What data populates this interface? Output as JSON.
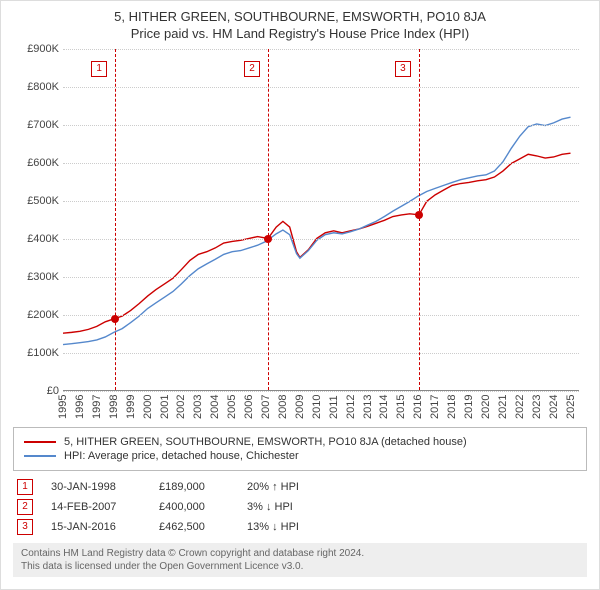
{
  "title": "5, HITHER GREEN, SOUTHBOURNE, EMSWORTH, PO10 8JA",
  "subtitle": "Price paid vs. HM Land Registry's House Price Index (HPI)",
  "chart": {
    "type": "line",
    "background_color": "#ffffff",
    "grid_color": "#cccccc",
    "x_min": 1995,
    "x_max": 2025.5,
    "y_min": 0,
    "y_max": 900000,
    "y_ticks": [
      0,
      100000,
      200000,
      300000,
      400000,
      500000,
      600000,
      700000,
      800000,
      900000
    ],
    "y_tick_labels": [
      "£0",
      "£100K",
      "£200K",
      "£300K",
      "£400K",
      "£500K",
      "£600K",
      "£700K",
      "£800K",
      "£900K"
    ],
    "x_ticks": [
      1995,
      1996,
      1997,
      1998,
      1999,
      2000,
      2001,
      2002,
      2003,
      2004,
      2005,
      2006,
      2007,
      2008,
      2009,
      2010,
      2011,
      2012,
      2013,
      2014,
      2015,
      2016,
      2017,
      2018,
      2019,
      2020,
      2021,
      2022,
      2023,
      2024,
      2025
    ],
    "label_fontsize": 11,
    "line_width": 1.4,
    "series": [
      {
        "name": "5, HITHER GREEN, SOUTHBOURNE, EMSWORTH, PO10 8JA (detached house)",
        "color": "#cc0000",
        "points": [
          [
            1995,
            150000
          ],
          [
            1995.5,
            152000
          ],
          [
            1996,
            155000
          ],
          [
            1996.5,
            160000
          ],
          [
            1997,
            168000
          ],
          [
            1997.5,
            180000
          ],
          [
            1998.08,
            189000
          ],
          [
            1998.5,
            195000
          ],
          [
            1999,
            210000
          ],
          [
            1999.5,
            228000
          ],
          [
            2000,
            248000
          ],
          [
            2000.5,
            265000
          ],
          [
            2001,
            280000
          ],
          [
            2001.5,
            295000
          ],
          [
            2002,
            318000
          ],
          [
            2002.5,
            342000
          ],
          [
            2003,
            358000
          ],
          [
            2003.5,
            365000
          ],
          [
            2004,
            375000
          ],
          [
            2004.5,
            388000
          ],
          [
            2005,
            392000
          ],
          [
            2005.5,
            395000
          ],
          [
            2006,
            400000
          ],
          [
            2006.5,
            405000
          ],
          [
            2007.12,
            400000
          ],
          [
            2007.6,
            430000
          ],
          [
            2008,
            445000
          ],
          [
            2008.4,
            430000
          ],
          [
            2008.8,
            365000
          ],
          [
            2009,
            350000
          ],
          [
            2009.5,
            370000
          ],
          [
            2010,
            400000
          ],
          [
            2010.5,
            415000
          ],
          [
            2011,
            420000
          ],
          [
            2011.5,
            415000
          ],
          [
            2012,
            420000
          ],
          [
            2012.5,
            425000
          ],
          [
            2013,
            432000
          ],
          [
            2013.5,
            440000
          ],
          [
            2014,
            448000
          ],
          [
            2014.5,
            458000
          ],
          [
            2015,
            462000
          ],
          [
            2015.5,
            465000
          ],
          [
            2016.04,
            462500
          ],
          [
            2016.5,
            498000
          ],
          [
            2017,
            515000
          ],
          [
            2017.5,
            528000
          ],
          [
            2018,
            540000
          ],
          [
            2018.5,
            545000
          ],
          [
            2019,
            548000
          ],
          [
            2019.5,
            552000
          ],
          [
            2020,
            555000
          ],
          [
            2020.5,
            562000
          ],
          [
            2021,
            578000
          ],
          [
            2021.5,
            598000
          ],
          [
            2022,
            610000
          ],
          [
            2022.5,
            622000
          ],
          [
            2023,
            618000
          ],
          [
            2023.5,
            612000
          ],
          [
            2024,
            615000
          ],
          [
            2024.5,
            622000
          ],
          [
            2025,
            625000
          ]
        ]
      },
      {
        "name": "HPI: Average price, detached house, Chichester",
        "color": "#5588cc",
        "points": [
          [
            1995,
            120000
          ],
          [
            1995.5,
            122000
          ],
          [
            1996,
            125000
          ],
          [
            1996.5,
            128000
          ],
          [
            1997,
            132000
          ],
          [
            1997.5,
            140000
          ],
          [
            1998,
            152000
          ],
          [
            1998.5,
            162000
          ],
          [
            1999,
            178000
          ],
          [
            1999.5,
            195000
          ],
          [
            2000,
            215000
          ],
          [
            2000.5,
            230000
          ],
          [
            2001,
            245000
          ],
          [
            2001.5,
            260000
          ],
          [
            2002,
            280000
          ],
          [
            2002.5,
            302000
          ],
          [
            2003,
            320000
          ],
          [
            2003.5,
            333000
          ],
          [
            2004,
            345000
          ],
          [
            2004.5,
            358000
          ],
          [
            2005,
            365000
          ],
          [
            2005.5,
            368000
          ],
          [
            2006,
            375000
          ],
          [
            2006.5,
            382000
          ],
          [
            2007,
            392000
          ],
          [
            2007.6,
            412000
          ],
          [
            2008,
            422000
          ],
          [
            2008.4,
            410000
          ],
          [
            2008.8,
            360000
          ],
          [
            2009,
            348000
          ],
          [
            2009.5,
            368000
          ],
          [
            2010,
            395000
          ],
          [
            2010.5,
            410000
          ],
          [
            2011,
            415000
          ],
          [
            2011.5,
            412000
          ],
          [
            2012,
            418000
          ],
          [
            2012.5,
            425000
          ],
          [
            2013,
            435000
          ],
          [
            2013.5,
            445000
          ],
          [
            2014,
            458000
          ],
          [
            2014.5,
            472000
          ],
          [
            2015,
            485000
          ],
          [
            2015.5,
            498000
          ],
          [
            2016,
            512000
          ],
          [
            2016.5,
            524000
          ],
          [
            2017,
            532000
          ],
          [
            2017.5,
            540000
          ],
          [
            2018,
            548000
          ],
          [
            2018.5,
            555000
          ],
          [
            2019,
            560000
          ],
          [
            2019.5,
            565000
          ],
          [
            2020,
            568000
          ],
          [
            2020.5,
            578000
          ],
          [
            2021,
            602000
          ],
          [
            2021.5,
            638000
          ],
          [
            2022,
            670000
          ],
          [
            2022.5,
            695000
          ],
          [
            2023,
            702000
          ],
          [
            2023.5,
            698000
          ],
          [
            2024,
            705000
          ],
          [
            2024.5,
            715000
          ],
          [
            2025,
            720000
          ]
        ]
      }
    ],
    "markers": [
      {
        "n": "1",
        "x": 1998.08,
        "y": 189000,
        "marker_color": "#cc0000"
      },
      {
        "n": "2",
        "x": 2007.12,
        "y": 400000,
        "marker_color": "#cc0000"
      },
      {
        "n": "3",
        "x": 2016.04,
        "y": 462500,
        "marker_color": "#cc0000"
      }
    ]
  },
  "legend": {
    "items": [
      {
        "color": "#cc0000",
        "label": "5, HITHER GREEN, SOUTHBOURNE, EMSWORTH, PO10 8JA (detached house)"
      },
      {
        "color": "#5588cc",
        "label": "HPI: Average price, detached house, Chichester"
      }
    ]
  },
  "transactions": [
    {
      "n": "1",
      "date": "30-JAN-1998",
      "price": "£189,000",
      "delta": "20% ↑ HPI"
    },
    {
      "n": "2",
      "date": "14-FEB-2007",
      "price": "£400,000",
      "delta": "3% ↓ HPI"
    },
    {
      "n": "3",
      "date": "15-JAN-2016",
      "price": "£462,500",
      "delta": "13% ↓ HPI"
    }
  ],
  "footer": {
    "line1": "Contains HM Land Registry data © Crown copyright and database right 2024.",
    "line2": "This data is licensed under the Open Government Licence v3.0."
  }
}
